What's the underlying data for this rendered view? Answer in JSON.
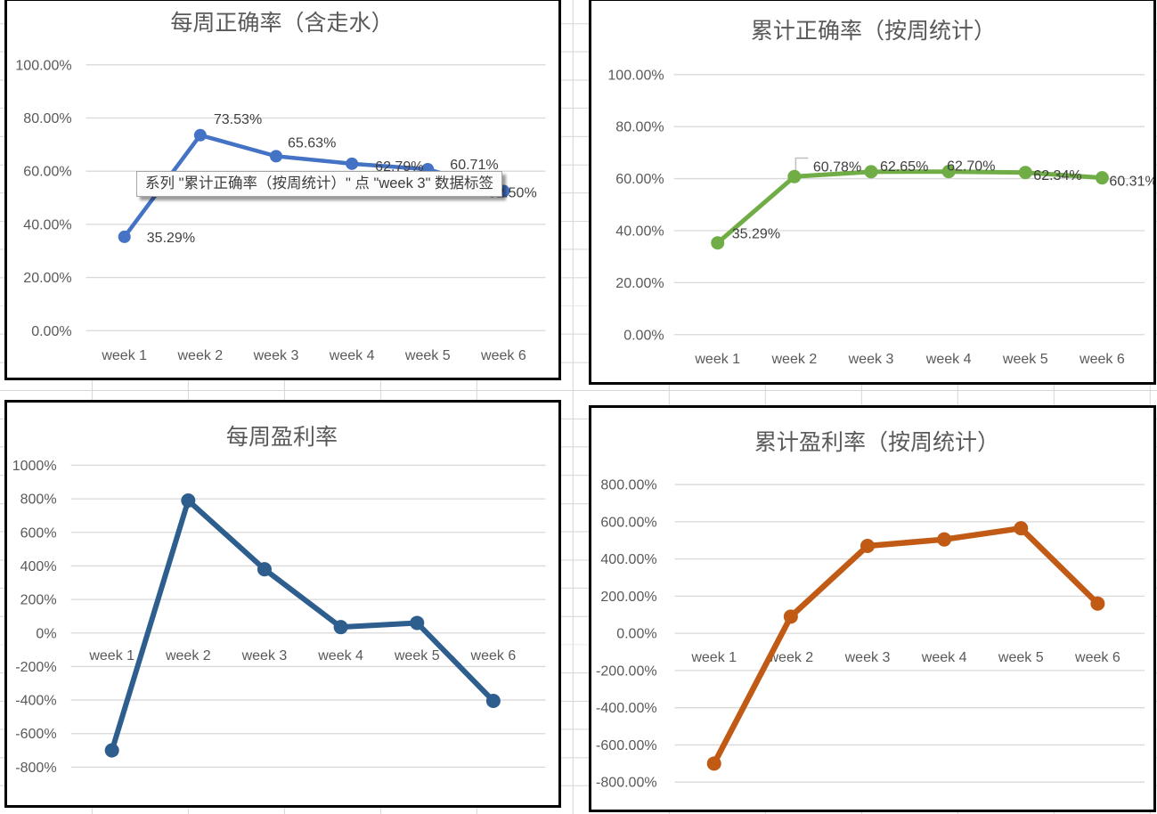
{
  "tooltip": {
    "text": "系列 \"累计正确率（按周统计）\" 点 \"week 3\" 数据标签"
  },
  "colors": {
    "weekly_accuracy_line": "#4472C4",
    "cumulative_accuracy_line": "#70AD47",
    "weekly_profit_line": "#2E5E8E",
    "cumulative_profit_line": "#C05A15",
    "chart_gridline": "#D9D9D9",
    "axis_text": "#595959",
    "data_label_text": "#3F3F3F",
    "chart_border": "#000000",
    "sheet_gridline": "#D8D8D8",
    "leader_line": "#BFBFBF"
  },
  "chart_data": [
    {
      "id": "weekly-accuracy",
      "type": "line",
      "title": "每周正确率（含走水）",
      "categories": [
        "week 1",
        "week 2",
        "week 3",
        "week 4",
        "week 5",
        "week 6"
      ],
      "values": [
        35.29,
        73.53,
        65.63,
        62.79,
        60.71,
        52.5
      ],
      "data_labels": [
        "35.29%",
        "73.53%",
        "65.63%",
        "62.79%",
        "60.71%",
        "52.50%"
      ],
      "ylim": [
        0,
        100
      ],
      "ytick_labels": [
        "100.00%",
        "80.00%",
        "60.00%",
        "40.00%",
        "20.00%",
        "0.00%"
      ],
      "line_color": "#4472C4",
      "grid": true,
      "legend": "none",
      "note": "week 6 marker and most of its 52.50% label are hidden behind the tooltip"
    },
    {
      "id": "cumulative-accuracy",
      "type": "line",
      "title": "累计正确率（按周统计）",
      "categories": [
        "week 1",
        "week 2",
        "week 3",
        "week 4",
        "week 5",
        "week 6"
      ],
      "values": [
        35.29,
        60.78,
        62.65,
        62.7,
        62.34,
        60.31
      ],
      "data_labels": [
        "35.29%",
        "60.78%",
        "62.65%",
        "62.70%",
        "62.34%",
        "60.31%"
      ],
      "ylim": [
        0,
        100
      ],
      "ytick_labels": [
        "100.00%",
        "80.00%",
        "60.00%",
        "40.00%",
        "20.00%",
        "0.00%"
      ],
      "line_color": "#70AD47",
      "grid": true,
      "legend": "none",
      "note": "week 2 label has a small gray leader line"
    },
    {
      "id": "weekly-profit",
      "type": "line",
      "title": "每周盈利率",
      "categories": [
        "week 1",
        "week 2",
        "week 3",
        "week 4",
        "week 5",
        "week 6"
      ],
      "values": [
        -700,
        790,
        380,
        35,
        60,
        -405
      ],
      "values_estimated": true,
      "data_labels": null,
      "ylim": [
        -800,
        1000
      ],
      "ytick_labels": [
        "1000%",
        "800%",
        "600%",
        "400%",
        "200%",
        "0%",
        "-200%",
        "-400%",
        "-600%",
        "-800%"
      ],
      "line_color": "#2E5E8E",
      "grid": true,
      "legend": "none"
    },
    {
      "id": "cumulative-profit",
      "type": "line",
      "title": "累计盈利率（按周统计）",
      "categories": [
        "week 1",
        "week 2",
        "week 3",
        "week 4",
        "week 5",
        "week 6"
      ],
      "values": [
        -700,
        90,
        470,
        505,
        565,
        160
      ],
      "values_estimated": true,
      "data_labels": null,
      "ylim": [
        -800,
        800
      ],
      "ytick_labels": [
        "800.00%",
        "600.00%",
        "400.00%",
        "200.00%",
        "0.00%",
        "-200.00%",
        "-400.00%",
        "-600.00%",
        "-800.00%"
      ],
      "line_color": "#C05A15",
      "grid": true,
      "legend": "none"
    }
  ]
}
